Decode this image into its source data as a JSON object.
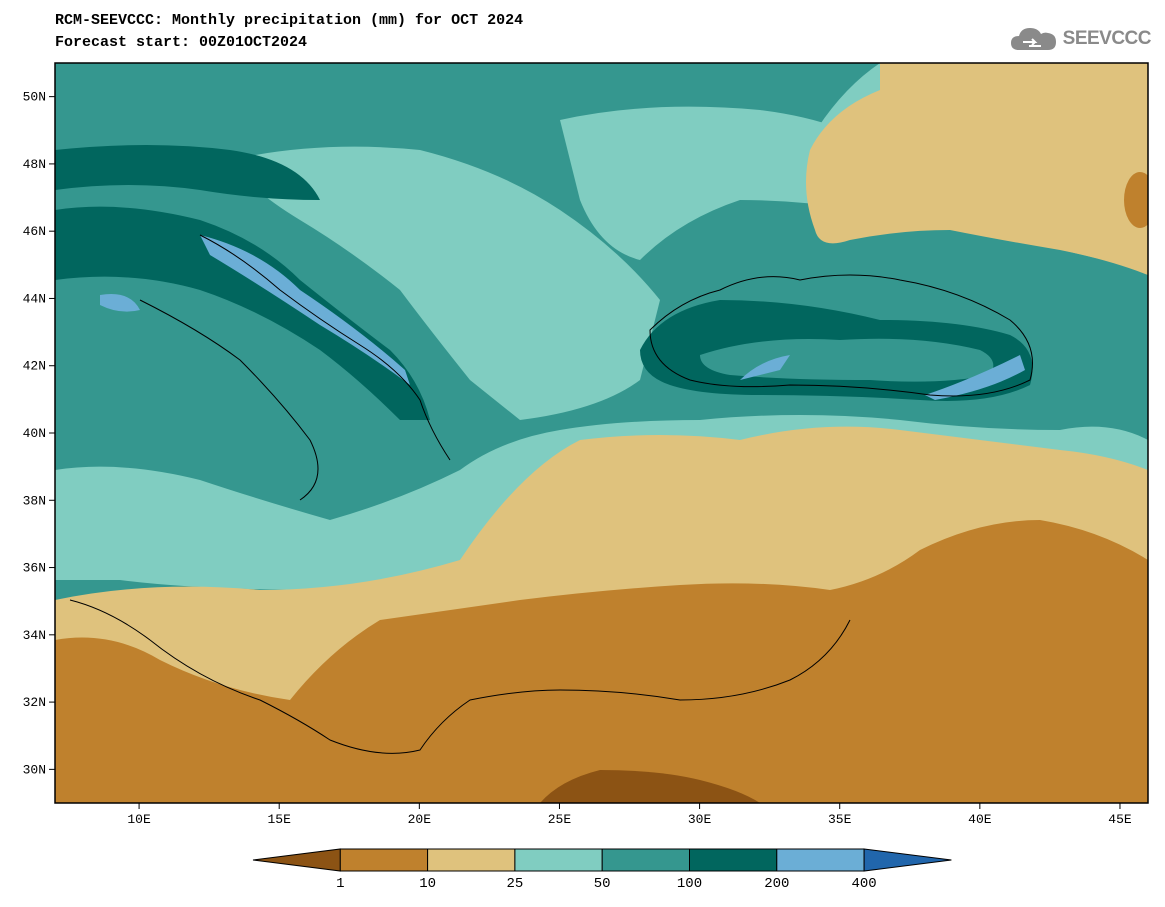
{
  "header": {
    "title": "RCM-SEEVCCC: Monthly precipitation (mm) for OCT 2024",
    "subtitle": "Forecast start: 00Z01OCT2024",
    "logo_text": "SEEVCCC"
  },
  "map": {
    "lon_range": [
      7,
      46
    ],
    "lat_range": [
      29,
      51
    ],
    "lat_ticks": [
      {
        "value": 50,
        "label": "50N"
      },
      {
        "value": 48,
        "label": "48N"
      },
      {
        "value": 46,
        "label": "46N"
      },
      {
        "value": 44,
        "label": "44N"
      },
      {
        "value": 42,
        "label": "42N"
      },
      {
        "value": 40,
        "label": "40N"
      },
      {
        "value": 38,
        "label": "38N"
      },
      {
        "value": 36,
        "label": "36N"
      },
      {
        "value": 34,
        "label": "34N"
      },
      {
        "value": 32,
        "label": "32N"
      },
      {
        "value": 30,
        "label": "30N"
      }
    ],
    "lon_ticks": [
      {
        "value": 10,
        "label": "10E"
      },
      {
        "value": 15,
        "label": "15E"
      },
      {
        "value": 20,
        "label": "20E"
      },
      {
        "value": 25,
        "label": "25E"
      },
      {
        "value": 30,
        "label": "30E"
      },
      {
        "value": 35,
        "label": "35E"
      },
      {
        "value": 40,
        "label": "40E"
      },
      {
        "value": 45,
        "label": "45E"
      }
    ]
  },
  "colorbar": {
    "labels": [
      "1",
      "10",
      "25",
      "50",
      "100",
      "200",
      "400"
    ],
    "colors": [
      "#8c5314",
      "#bf812d",
      "#dfc27d",
      "#80cdc1",
      "#35978f",
      "#01665e",
      "#6baed6",
      "#2166ac"
    ]
  },
  "palette": {
    "c1_10": "#bf812d",
    "c10_25": "#dfc27d",
    "c25_50": "#80cdc1",
    "c50_100": "#35978f",
    "c100_200": "#01665e",
    "c200_400": "#6baed6",
    "c_lt1": "#8c5314"
  }
}
